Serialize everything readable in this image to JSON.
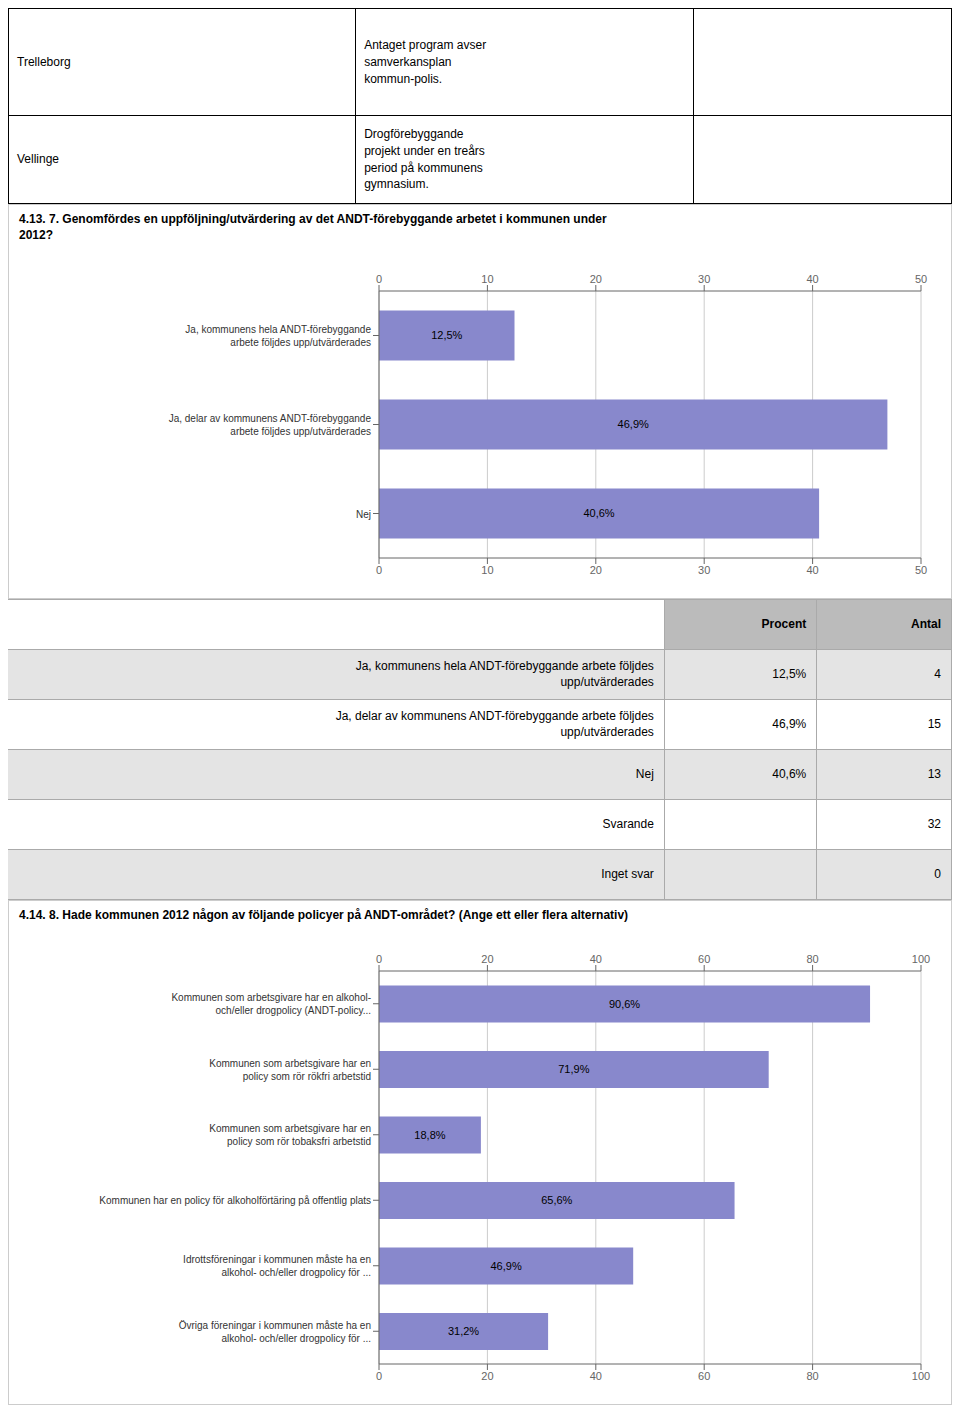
{
  "chart_data": [
    {
      "type": "bar",
      "title": "4.13. 7. Genomfördes en uppföljning/utvärdering av det ANDT-förebyggande arbetet i kommunen under\n2012?",
      "orientation": "horizontal",
      "categories": [
        "Ja, kommunens hela ANDT-förebyggande\narbete följdes upp/utvärderades",
        "Ja, delar av kommunens ANDT-förebyggande\narbete följdes upp/utvärderades",
        "Nej"
      ],
      "values": [
        12.5,
        46.9,
        40.6
      ],
      "value_labels": [
        "12,5%",
        "46,9%",
        "40,6%"
      ],
      "data_labels": true,
      "color": "#8888cc",
      "xlim": [
        0,
        50
      ],
      "xticks": [
        0,
        10,
        20,
        30,
        40,
        50
      ],
      "grid": true
    },
    {
      "type": "bar",
      "title": "4.14. 8. Hade kommunen 2012 någon av följande policyer på ANDT-området? (Ange ett eller flera alternativ)",
      "orientation": "horizontal",
      "categories": [
        "Kommunen som arbetsgivare har en alkohol-\noch/eller drogpolicy (ANDT-policy...",
        "Kommunen som arbetsgivare har en\npolicy som rör rökfri arbetstid",
        "Kommunen som arbetsgivare har en\npolicy som rör tobaksfri arbetstid",
        "Kommunen har en policy för alkoholförtäring på offentlig plats",
        "Idrottsföreningar i kommunen måste ha en\nalkohol- och/eller drogpolicy för ...",
        "Övriga föreningar i kommunen måste ha en\nalkohol- och/eller drogpolicy för ..."
      ],
      "values": [
        90.6,
        71.9,
        18.8,
        65.6,
        46.9,
        31.2
      ],
      "value_labels": [
        "90,6%",
        "71,9%",
        "18,8%",
        "65,6%",
        "46,9%",
        "31,2%"
      ],
      "data_labels": true,
      "color": "#8888cc",
      "xlim": [
        0,
        100
      ],
      "xticks": [
        0,
        20,
        40,
        60,
        80,
        100
      ],
      "grid": true
    }
  ],
  "tables": [
    {
      "rows": [
        [
          "Trelleborg",
          "Antaget program avser\nsamverkansplan\nkommun-polis.",
          ""
        ],
        [
          "Vellinge",
          "Drogförebyggande\nprojekt under en treårs\nperiod på kommunens\ngymnasium.",
          ""
        ]
      ]
    },
    {
      "headers": [
        "",
        "Procent",
        "Antal"
      ],
      "rows": [
        [
          "Ja, kommunens hela ANDT-förebyggande arbete följdes\nupp/utvärderades",
          "12,5%",
          "4"
        ],
        [
          "Ja, delar av kommunens ANDT-förebyggande arbete följdes\nupp/utvärderades",
          "46,9%",
          "15"
        ],
        [
          "Nej",
          "40,6%",
          "13"
        ],
        [
          "Svarande",
          "",
          "32"
        ],
        [
          "Inget svar",
          "",
          "0"
        ]
      ]
    }
  ]
}
